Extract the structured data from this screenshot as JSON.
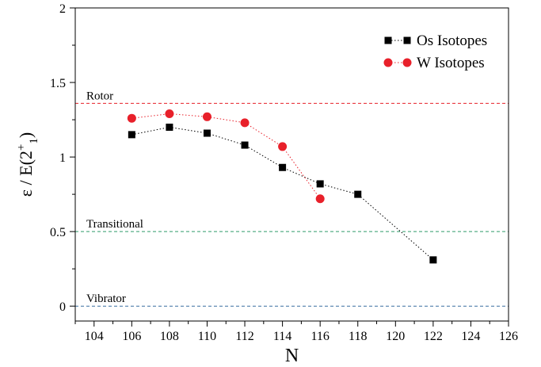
{
  "chart_data": {
    "type": "line",
    "xlabel": "N",
    "ylabel": "ε / E(2",
    "ylabel_sup": "+",
    "ylabel_sub": "1",
    "ylabel_close": ")",
    "xlim": [
      103,
      126
    ],
    "ylim": [
      -0.1,
      2
    ],
    "xticks": [
      104,
      106,
      108,
      110,
      112,
      114,
      116,
      118,
      120,
      122,
      124,
      126
    ],
    "yticks": [
      0,
      0.5,
      1,
      1.5,
      2
    ],
    "ytick_labels": [
      "0",
      "0.5",
      "1",
      "1.5",
      "2"
    ],
    "legend_position": "top-right",
    "grid": false,
    "series": [
      {
        "name": "Os Isotopes",
        "marker": "square",
        "color": "#000000",
        "line_color": "#000000",
        "x": [
          106,
          108,
          110,
          112,
          114,
          116,
          118,
          122
        ],
        "y": [
          1.15,
          1.2,
          1.16,
          1.08,
          0.93,
          0.82,
          0.75,
          0.31
        ]
      },
      {
        "name": "W Isotopes",
        "marker": "circle",
        "color": "#e8202a",
        "line_color": "#e8202a",
        "x": [
          106,
          108,
          110,
          112,
          114,
          116
        ],
        "y": [
          1.26,
          1.29,
          1.27,
          1.23,
          1.07,
          0.72
        ]
      }
    ],
    "reference_lines": [
      {
        "label": "Rotor",
        "y": 1.36,
        "color": "#e8202a"
      },
      {
        "label": "Transitional",
        "y": 0.5,
        "color": "#2e9a6a"
      },
      {
        "label": "Vibrator",
        "y": 0.0,
        "color": "#3a6fa0"
      }
    ]
  }
}
